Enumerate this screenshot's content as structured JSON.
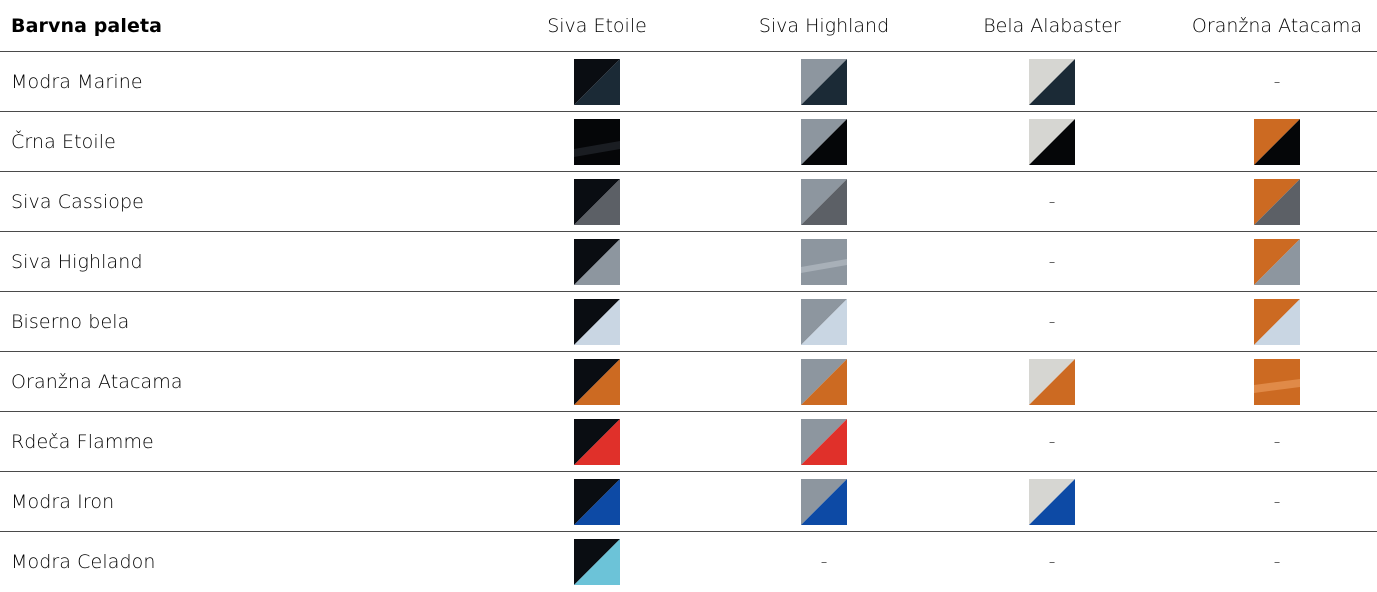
{
  "header": {
    "title": "Barvna paleta",
    "columns": [
      "Siva Etoile",
      "Siva Highland",
      "Bela Alabaster",
      "Oranžna Atacama"
    ]
  },
  "colors": {
    "siva_etoile": "#0a0d12",
    "siva_highland": "#8d969f",
    "bela_alabaster": "#d6d6d2",
    "oranzna_atacama": "#cc6a22",
    "modra_marine": "#1b2a36",
    "crna_etoile": "#050608",
    "siva_cassiope": "#5c6066",
    "biserno_bela": "#c9d6e3",
    "rdeca_flamme": "#e0302a",
    "modra_iron": "#0d4aa5",
    "modra_celadon": "#6cc3d8"
  },
  "rows": [
    {
      "label": "Modra Marine",
      "cells": [
        "swatch",
        "swatch",
        "swatch",
        "-"
      ]
    },
    {
      "label": "Črna Etoile",
      "cells": [
        "swatch",
        "swatch",
        "swatch",
        "swatch"
      ]
    },
    {
      "label": "Siva Cassiope",
      "cells": [
        "swatch",
        "swatch",
        "-",
        "swatch"
      ]
    },
    {
      "label": "Siva Highland",
      "cells": [
        "swatch",
        "swatch",
        "-",
        "swatch"
      ]
    },
    {
      "label": "Biserno bela",
      "cells": [
        "swatch",
        "swatch",
        "-",
        "swatch"
      ]
    },
    {
      "label": "Oranžna Atacama",
      "cells": [
        "swatch",
        "swatch",
        "swatch",
        "swatch"
      ]
    },
    {
      "label": "Rdeča Flamme",
      "cells": [
        "swatch",
        "swatch",
        "-",
        "-"
      ]
    },
    {
      "label": "Modra Iron",
      "cells": [
        "swatch",
        "swatch",
        "swatch",
        "-"
      ]
    },
    {
      "label": "Modra Celadon",
      "cells": [
        "swatch",
        "-",
        "-",
        "-"
      ]
    }
  ]
}
